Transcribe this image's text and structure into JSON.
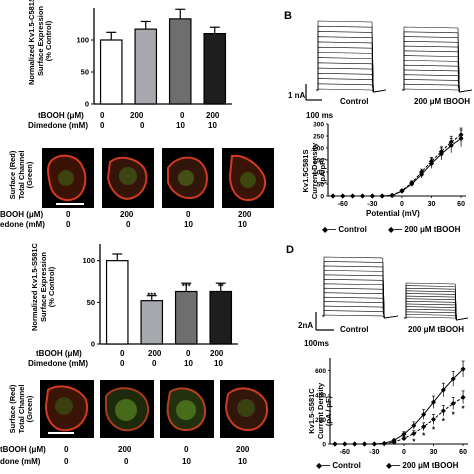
{
  "panels": {
    "A": {
      "letter": "",
      "ylabel": [
        "Normalized Kv1.5-C581S",
        "Surface Expression",
        "(% Control)"
      ],
      "yticks": [
        "0",
        "50",
        "100"
      ],
      "row_labels": [
        "tBOOH (μM)",
        "Dimedone (mM)"
      ],
      "tbooh": [
        "0",
        "200",
        "0",
        "200"
      ],
      "dimedone": [
        "0",
        "0",
        "10",
        "10"
      ],
      "image_ylabel": [
        "Surface (Red)",
        "Total Channel",
        "(Green)"
      ],
      "image_row_labels": [
        "BOOH (μM)",
        "edone (mM)"
      ],
      "image_tbooh": [
        "0",
        "200",
        "0",
        "200"
      ],
      "image_dimedone": [
        "0",
        "0",
        "10",
        "10"
      ]
    },
    "B": {
      "letter": "B",
      "scale_v": "1 nA",
      "scale_t": "100 ms",
      "trace_labels": [
        "Control",
        "200 μM tBOOH"
      ],
      "ylabel": [
        "Kv1.5C581S",
        "Current Density",
        "(pA/pF)"
      ],
      "xlabel": "Potential (mV)",
      "yticks": [
        "0",
        "50",
        "100",
        "150",
        "200",
        "250",
        "300"
      ],
      "xticks": [
        "-60",
        "-30",
        "0",
        "30",
        "60"
      ],
      "legend": [
        "Control",
        "200 μM tBOOH"
      ]
    },
    "C": {
      "letter": "",
      "ylabel": [
        "Normalized Kv1.5-S581C",
        "Surface Expression",
        "(% Control)"
      ],
      "yticks": [
        "0",
        "50",
        "100"
      ],
      "row_labels": [
        "tBOOH (μM)",
        "Dimedone (mM)"
      ],
      "tbooh": [
        "0",
        "200",
        "0",
        "200"
      ],
      "dimedone": [
        "0",
        "0",
        "10",
        "10"
      ],
      "sig": [
        "",
        "***",
        "***",
        "**"
      ],
      "image_ylabel": [
        "Surface (Red)",
        "Total Channel",
        "(Green)"
      ],
      "image_row_labels": [
        "tBOOH (μM)",
        "done (mM)"
      ],
      "image_tbooh": [
        "0",
        "200",
        "0",
        "200"
      ],
      "image_dimedone": [
        "0",
        "0",
        "10",
        "10"
      ]
    },
    "D": {
      "letter": "D",
      "scale_v": "2nA",
      "scale_t": "100ms",
      "trace_labels": [
        "Control",
        "200 μM tBOOH"
      ],
      "ylabel": [
        "Kv1.5-S581C",
        "Current Density",
        "(pA / pF)"
      ],
      "yticks": [
        "0",
        "200",
        "400",
        "600"
      ],
      "xticks": [
        "-60",
        "-30",
        "0",
        "30",
        "60"
      ],
      "legend": [
        "Control",
        "200 μM tBOOH"
      ],
      "stars": [
        "*",
        "*",
        "*",
        "*",
        "*",
        "*"
      ]
    }
  },
  "chart_data": [
    {
      "type": "bar",
      "id": "A",
      "categories": [
        "Control",
        "tBOOH 200",
        "Dimedone 10",
        "tBOOH 200 + Dimedone 10"
      ],
      "values": [
        100,
        117,
        133,
        110
      ],
      "errors": [
        12,
        12,
        15,
        10
      ],
      "colors": [
        "#ffffff",
        "#a7a9ae",
        "#6e6e70",
        "#1e1e1e"
      ],
      "ylim": [
        0,
        150
      ]
    },
    {
      "type": "line",
      "id": "B",
      "x": [
        -70,
        -60,
        -50,
        -40,
        -30,
        -20,
        -10,
        0,
        10,
        20,
        30,
        40,
        50,
        60
      ],
      "series": [
        {
          "name": "Control",
          "values": [
            0,
            0,
            0,
            0,
            0,
            0,
            2,
            20,
            50,
            90,
            135,
            175,
            210,
            240
          ]
        },
        {
          "name": "200 μM tBOOH",
          "values": [
            0,
            0,
            0,
            0,
            0,
            0,
            3,
            22,
            55,
            100,
            145,
            185,
            225,
            255
          ]
        }
      ],
      "errors": [
        0,
        0,
        0,
        0,
        0,
        0,
        2,
        6,
        10,
        15,
        20,
        25,
        30,
        35
      ],
      "ylim": [
        0,
        300
      ],
      "xlim": [
        -75,
        65
      ]
    },
    {
      "type": "bar",
      "id": "C",
      "categories": [
        "Control",
        "tBOOH 200",
        "Dimedone 10",
        "tBOOH 200 + Dimedone 10"
      ],
      "values": [
        100,
        52,
        63,
        63
      ],
      "errors": [
        8,
        6,
        10,
        10
      ],
      "colors": [
        "#ffffff",
        "#a7a9ae",
        "#6e6e70",
        "#1e1e1e"
      ],
      "ylim": [
        0,
        120
      ]
    },
    {
      "type": "line",
      "id": "D",
      "x": [
        -70,
        -60,
        -50,
        -40,
        -30,
        -20,
        -10,
        0,
        10,
        20,
        30,
        40,
        50,
        60
      ],
      "series": [
        {
          "name": "Control",
          "values": [
            0,
            0,
            0,
            0,
            0,
            5,
            30,
            80,
            150,
            240,
            340,
            440,
            530,
            610
          ]
        },
        {
          "name": "200 μM tBOOH",
          "values": [
            0,
            0,
            0,
            0,
            0,
            3,
            15,
            45,
            85,
            140,
            200,
            270,
            330,
            380
          ]
        }
      ],
      "errors": [
        0,
        0,
        0,
        0,
        0,
        5,
        10,
        20,
        30,
        40,
        50,
        55,
        60,
        65
      ],
      "ylim": [
        0,
        700
      ],
      "xlim": [
        -75,
        65
      ]
    }
  ]
}
